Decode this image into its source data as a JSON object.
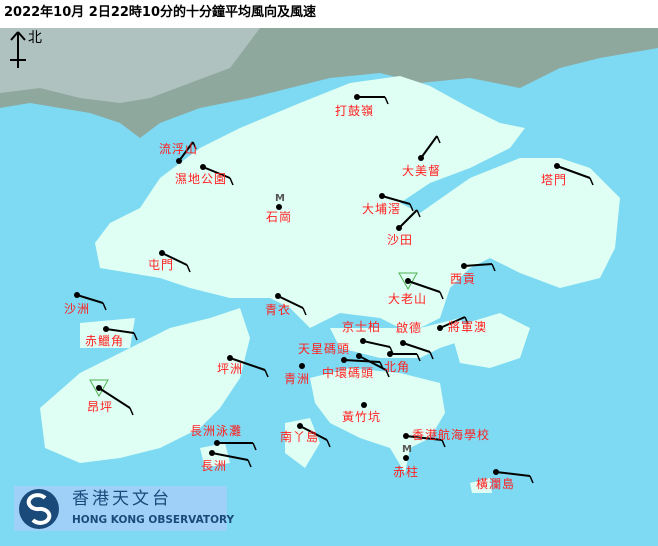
{
  "header": {
    "title": "2022年10月 2日22時10分的十分鐘平均風向及風速"
  },
  "compass": {
    "label": "北",
    "icon": "north-arrow-icon"
  },
  "colors": {
    "sea": "#7ddaf2",
    "land": "#e0fff4",
    "label": "#ff2020",
    "barb": "#000000",
    "triangle": "#4caf50"
  },
  "stations": [
    {
      "name": "打鼓嶺"
    },
    {
      "name": "流浮山"
    },
    {
      "name": "濕地公園"
    },
    {
      "name": "石崗"
    },
    {
      "name": "大美督"
    },
    {
      "name": "大埔滘"
    },
    {
      "name": "沙田"
    },
    {
      "name": "塔門"
    },
    {
      "name": "屯門"
    },
    {
      "name": "大老山"
    },
    {
      "name": "西貢"
    },
    {
      "name": "沙洲"
    },
    {
      "name": "青衣"
    },
    {
      "name": "赤鱲角"
    },
    {
      "name": "將軍澳"
    },
    {
      "name": "京士柏"
    },
    {
      "name": "啟德"
    },
    {
      "name": "天星碼頭"
    },
    {
      "name": "北角"
    },
    {
      "name": "中環碼頭"
    },
    {
      "name": "青洲"
    },
    {
      "name": "坪洲"
    },
    {
      "name": "昂坪"
    },
    {
      "name": "黃竹坑"
    },
    {
      "name": "長洲泳灘"
    },
    {
      "name": "南丫島"
    },
    {
      "name": "香港航海學校"
    },
    {
      "name": "長洲"
    },
    {
      "name": "赤柱"
    },
    {
      "name": "橫瀾島"
    }
  ],
  "logo": {
    "zh": "香港天文台",
    "en": "HONG KONG OBSERVATORY"
  }
}
